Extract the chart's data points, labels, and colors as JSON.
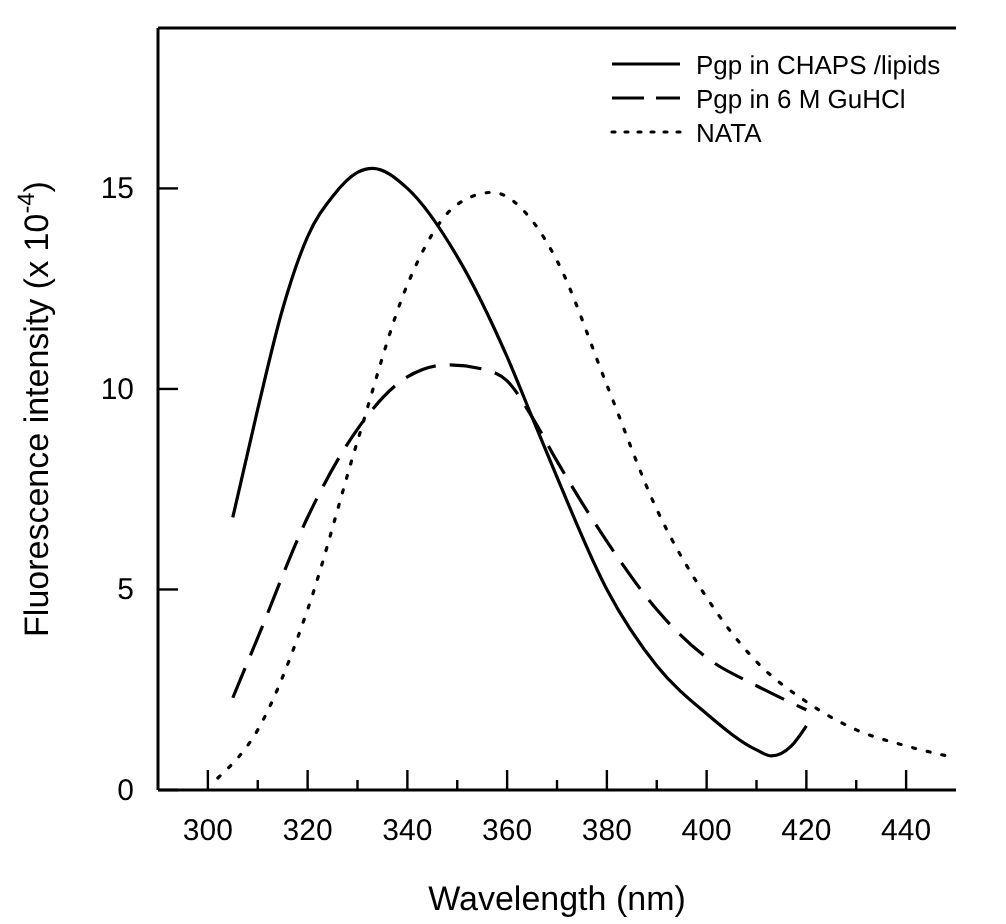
{
  "chart_data": {
    "type": "line",
    "xlabel": "Wavelength (nm)",
    "ylabel": "Fluorescence intensity (x 10$^{-4}$)",
    "xlim": [
      290,
      450
    ],
    "ylim": [
      0,
      19
    ],
    "xticks": [
      300,
      {
        "value": 310,
        "label": null
      },
      320,
      {
        "value": 330,
        "label": null
      },
      340,
      {
        "value": 350,
        "label": null
      },
      360,
      {
        "value": 370,
        "label": null
      },
      380,
      {
        "value": 390,
        "label": null
      },
      400,
      {
        "value": 410,
        "label": null
      },
      420,
      {
        "value": 430,
        "label": null
      },
      440
    ],
    "yticks": [
      0,
      5,
      10,
      15
    ],
    "grid": false,
    "legend": "top right",
    "series": [
      {
        "name": "Pgp in CHAPS /lipids",
        "color": "#000000",
        "line_style": "solid",
        "x": [
          305,
          310,
          315,
          320,
          325,
          330,
          333,
          340,
          350,
          360,
          365,
          370,
          380,
          390,
          400,
          410,
          413,
          417,
          420
        ],
        "values": [
          6.8,
          9.5,
          12,
          13.8,
          14.8,
          15.4,
          15.5,
          15,
          13.3,
          10.8,
          9.3,
          7.8,
          5,
          3.1,
          1.9,
          1,
          0.85,
          1.1,
          1.6
        ]
      },
      {
        "name": "Pgp in 6 M GuHCl",
        "color": "#000000",
        "line_style": "dashed",
        "x": [
          305,
          310,
          320,
          330,
          340,
          348,
          355,
          360,
          365,
          370,
          380,
          390,
          400,
          410,
          420
        ],
        "values": [
          2.3,
          3.8,
          6.8,
          9,
          10.3,
          10.6,
          10.5,
          10.2,
          9.3,
          8.2,
          6.2,
          4.5,
          3.3,
          2.6,
          2
        ]
      },
      {
        "name": "NATA",
        "color": "#000000",
        "line_style": "dotted",
        "x": [
          302,
          310,
          320,
          330,
          340,
          350,
          357,
          365,
          370,
          380,
          390,
          400,
          410,
          420,
          430,
          440,
          450
        ],
        "values": [
          0.3,
          1.5,
          4.5,
          8.7,
          12.6,
          14.6,
          14.9,
          14.2,
          13.2,
          10.1,
          7,
          4.8,
          3.2,
          2.2,
          1.5,
          1.1,
          0.8
        ]
      }
    ]
  }
}
